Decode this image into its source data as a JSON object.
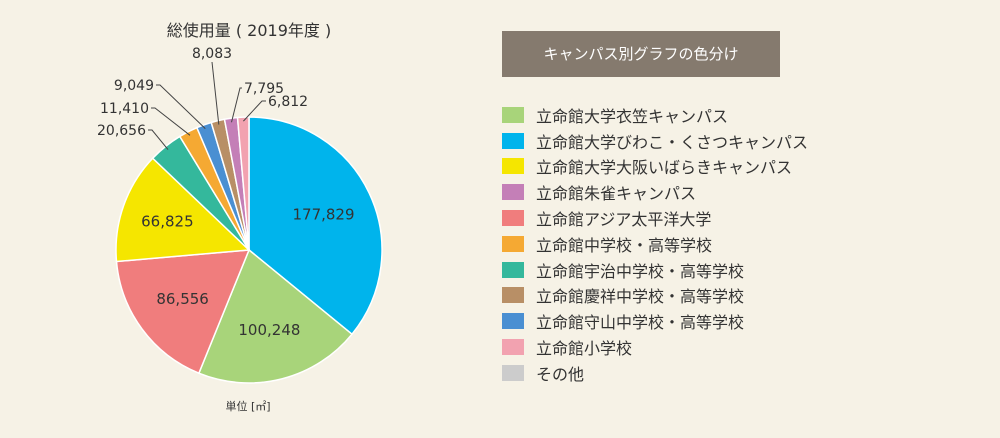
{
  "chart_data": {
    "type": "pie",
    "title": "総使用量 ( 2019年度 )",
    "unit_label": "単位 [㎡]",
    "start": "12 o'clock",
    "direction": "clockwise",
    "slices": [
      {
        "value": 177829,
        "label": "177,829",
        "color": "#00b4ec"
      },
      {
        "value": 100248,
        "label": "100,248",
        "color": "#a8d47a"
      },
      {
        "value": 86556,
        "label": "86,556",
        "color": "#f07d7d"
      },
      {
        "value": 66825,
        "label": "66,825",
        "color": "#f5e600"
      },
      {
        "value": 20656,
        "label": "20,656",
        "color": "#34b89c"
      },
      {
        "value": 11410,
        "label": "11,410",
        "color": "#f5a933"
      },
      {
        "value": 9049,
        "label": "9,049",
        "color": "#4a8fd2"
      },
      {
        "value": 8083,
        "label": "8,083",
        "color": "#b88f66"
      },
      {
        "value": 7795,
        "label": "7,795",
        "color": "#c47fb7"
      },
      {
        "value": 6812,
        "label": "6,812",
        "color": "#f2a2b0"
      }
    ]
  },
  "legend": {
    "title": "キャンパス別グラフの色分け",
    "items": [
      {
        "label": "立命館大学衣笠キャンパス",
        "color": "#a8d47a"
      },
      {
        "label": "立命館大学びわこ・くさつキャンパス",
        "color": "#00b4ec"
      },
      {
        "label": "立命館大学大阪いばらきキャンパス",
        "color": "#f5e600"
      },
      {
        "label": "立命館朱雀キャンパス",
        "color": "#c47fb7"
      },
      {
        "label": "立命館アジア太平洋大学",
        "color": "#f07d7d"
      },
      {
        "label": "立命館中学校・高等学校",
        "color": "#f5a933"
      },
      {
        "label": "立命館宇治中学校・高等学校",
        "color": "#34b89c"
      },
      {
        "label": "立命館慶祥中学校・高等学校",
        "color": "#b88f66"
      },
      {
        "label": "立命館守山中学校・高等学校",
        "color": "#4a8fd2"
      },
      {
        "label": "立命館小学校",
        "color": "#f2a2b0"
      },
      {
        "label": "その他",
        "color": "#cccccc"
      }
    ]
  }
}
